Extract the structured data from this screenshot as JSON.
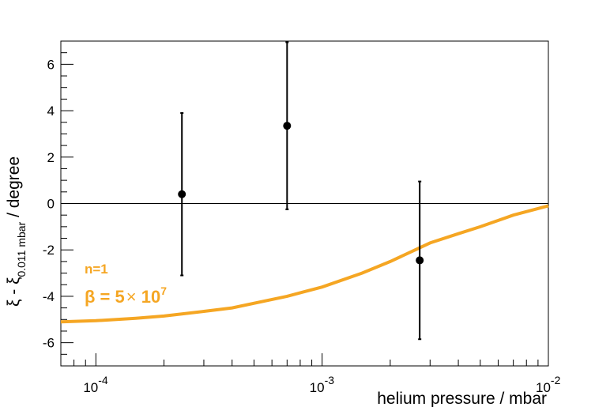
{
  "chart_data": {
    "type": "scatter",
    "title": "",
    "xlabel": "helium pressure / mbar",
    "ylabel_main": "ξ - ξ",
    "ylabel_sub": "0.011 mbar",
    "ylabel_tail": " / degree",
    "x_scale": "log",
    "xlim": [
      7e-05,
      0.01
    ],
    "ylim": [
      -7,
      7
    ],
    "x_ticks": [
      {
        "value": 0.0001,
        "base": "10",
        "exp": "-4"
      },
      {
        "value": 0.001,
        "base": "10",
        "exp": "-3"
      },
      {
        "value": 0.01,
        "base": "10",
        "exp": "-2"
      }
    ],
    "y_ticks": [
      {
        "value": 6,
        "label": "6"
      },
      {
        "value": 4,
        "label": "4"
      },
      {
        "value": 2,
        "label": "2"
      },
      {
        "value": 0,
        "label": "0"
      },
      {
        "value": -2,
        "label": "-2"
      },
      {
        "value": -4,
        "label": "-4"
      },
      {
        "value": -6,
        "label": "-6"
      }
    ],
    "reference_line": 0,
    "data_points": [
      {
        "x": 0.00024,
        "y": 0.4,
        "err": 3.5
      },
      {
        "x": 0.0007,
        "y": 3.35,
        "err": 3.6
      },
      {
        "x": 0.0027,
        "y": -2.45,
        "err": 3.4
      }
    ],
    "model_curve": {
      "color": "#f5a623",
      "x": [
        7e-05,
        0.0001,
        0.00015,
        0.0002,
        0.0003,
        0.0004,
        0.0007,
        0.001,
        0.0015,
        0.002,
        0.003,
        0.004,
        0.005,
        0.007,
        0.01
      ],
      "y": [
        -5.1,
        -5.05,
        -4.95,
        -4.85,
        -4.65,
        -4.5,
        -4.0,
        -3.6,
        -3.0,
        -2.5,
        -1.7,
        -1.3,
        -1.0,
        -0.5,
        -0.1
      ]
    },
    "annotations": {
      "n_label": "n=1",
      "beta_prefix": "β = 5",
      "beta_times": "×",
      "beta_base": " 10",
      "beta_exp": "7"
    }
  }
}
